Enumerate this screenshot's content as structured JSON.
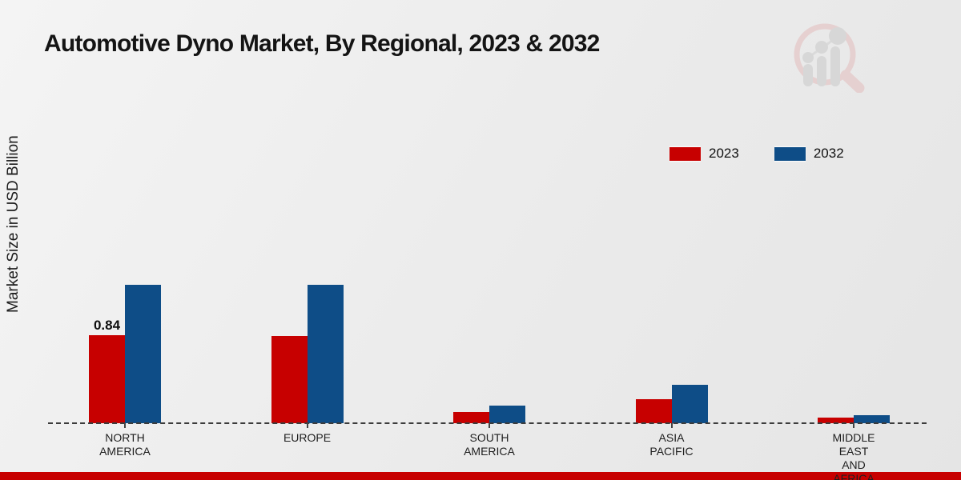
{
  "ui": {
    "watermark_icon": "magnifier-bar-chart-logo",
    "footer_color": "#c70000",
    "background_top": "#f4f4f4",
    "background_bottom": "#e5e5e5"
  },
  "chart_data": {
    "type": "bar",
    "title": "Automotive Dyno Market, By Regional, 2023 & 2032",
    "xlabel": "",
    "ylabel": "Market Size in USD Billion",
    "categories": [
      "NORTH AMERICA",
      "EUROPE",
      "SOUTH AMERICA",
      "ASIA PACIFIC",
      "MIDDLE EAST AND AFRICA"
    ],
    "series": [
      {
        "name": "2023",
        "color": "#c70000",
        "values": [
          0.84,
          0.83,
          0.11,
          0.23,
          0.05
        ]
      },
      {
        "name": "2032",
        "color": "#0e4d87",
        "values": [
          1.32,
          1.32,
          0.17,
          0.37,
          0.08
        ]
      }
    ],
    "bar_labels": [
      {
        "series": "2023",
        "category_index": 0,
        "text": "0.84"
      }
    ],
    "ylim": [
      0,
      1.45
    ],
    "grid": false,
    "legend_position": "upper-right",
    "baseline_style": "dashed",
    "axis_ticks_visible": true
  }
}
